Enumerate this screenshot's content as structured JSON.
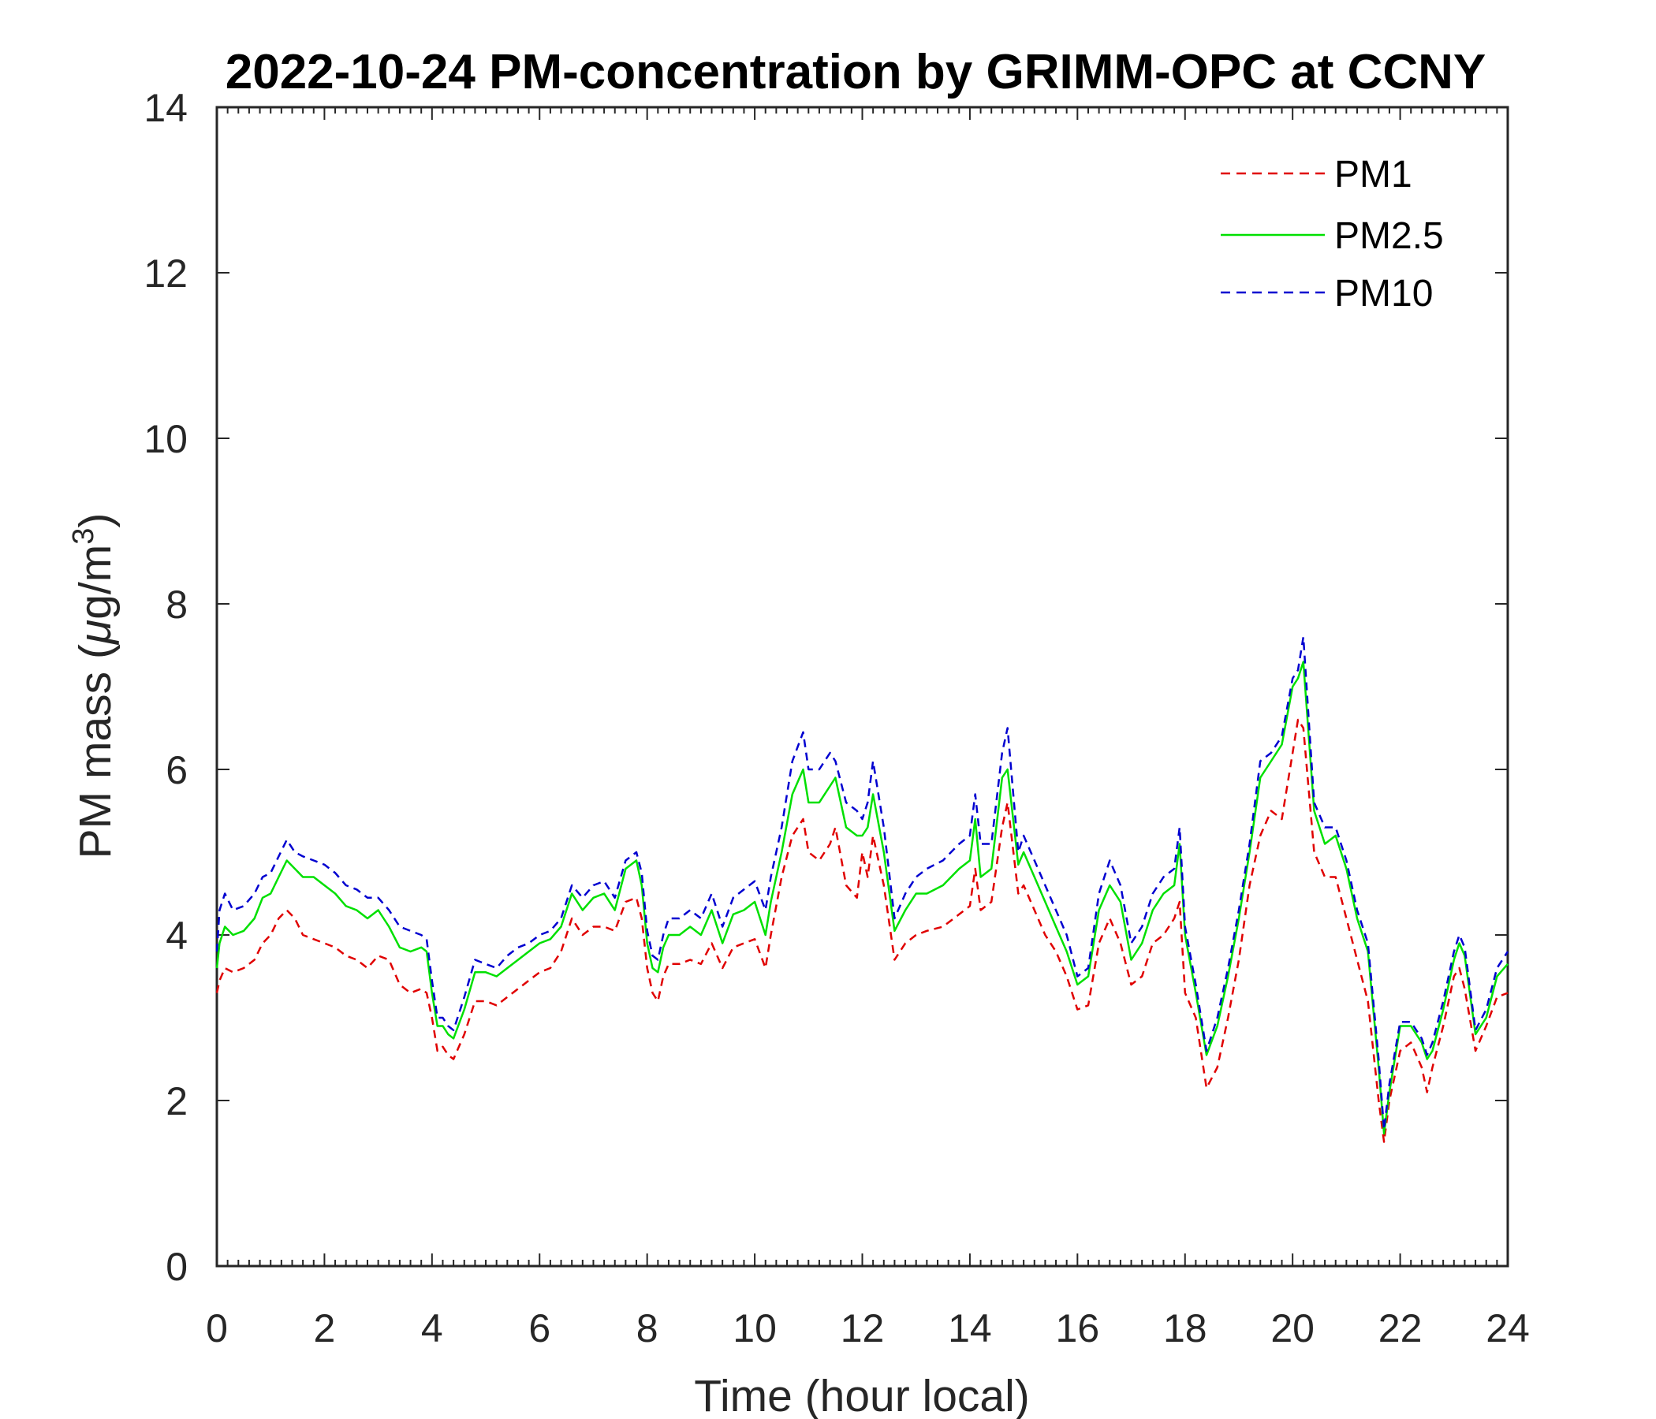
{
  "chart_data": {
    "type": "line",
    "title": "2022-10-24 PM-concentration by GRIMM-OPC at CCNY",
    "xlabel": "Time (hour local)",
    "ylabel": "PM mass (μg/m³)",
    "ylabel_parts": {
      "prefix": "PM mass (",
      "mu": "μ",
      "unit": "g/m",
      "superscript": "3",
      "suffix": ")"
    },
    "xlim": [
      0,
      24
    ],
    "ylim": [
      0,
      14
    ],
    "xticks": [
      0,
      2,
      4,
      6,
      8,
      10,
      12,
      14,
      16,
      18,
      20,
      22,
      24
    ],
    "yticks": [
      0,
      2,
      4,
      6,
      8,
      10,
      12,
      14
    ],
    "xtick_labels": [
      "0",
      "2",
      "4",
      "6",
      "8",
      "10",
      "12",
      "14",
      "16",
      "18",
      "20",
      "22",
      "24"
    ],
    "ytick_labels": [
      "0",
      "2",
      "4",
      "6",
      "8",
      "10",
      "12",
      "14"
    ],
    "grid": false,
    "legend_position": "top-right",
    "series": [
      {
        "name": "PM1",
        "color": "#e00000",
        "style": "dashed",
        "x": [
          0,
          0.05,
          0.15,
          0.3,
          0.5,
          0.7,
          0.85,
          1.0,
          1.15,
          1.3,
          1.45,
          1.6,
          1.8,
          2.0,
          2.2,
          2.4,
          2.6,
          2.8,
          3.0,
          3.2,
          3.4,
          3.6,
          3.8,
          3.9,
          4.0,
          4.1,
          4.2,
          4.3,
          4.4,
          4.6,
          4.8,
          5.0,
          5.2,
          5.4,
          5.6,
          5.8,
          6.0,
          6.2,
          6.4,
          6.6,
          6.8,
          7.0,
          7.2,
          7.4,
          7.6,
          7.8,
          7.9,
          8.0,
          8.1,
          8.2,
          8.3,
          8.4,
          8.6,
          8.8,
          9.0,
          9.2,
          9.4,
          9.6,
          9.8,
          10.0,
          10.2,
          10.3,
          10.5,
          10.7,
          10.9,
          11.0,
          11.2,
          11.4,
          11.5,
          11.7,
          11.9,
          12.0,
          12.1,
          12.2,
          12.4,
          12.6,
          12.8,
          13.0,
          13.2,
          13.5,
          13.8,
          14.0,
          14.1,
          14.2,
          14.4,
          14.6,
          14.7,
          14.9,
          15.0,
          15.2,
          15.4,
          15.6,
          15.8,
          16.0,
          16.2,
          16.4,
          16.6,
          16.8,
          17.0,
          17.2,
          17.4,
          17.6,
          17.8,
          17.9,
          18.0,
          18.2,
          18.4,
          18.6,
          18.8,
          19.0,
          19.2,
          19.4,
          19.6,
          19.8,
          20.0,
          20.1,
          20.2,
          20.4,
          20.6,
          20.8,
          21.0,
          21.2,
          21.4,
          21.6,
          21.7,
          21.8,
          22.0,
          22.2,
          22.4,
          22.5,
          22.6,
          22.8,
          23.0,
          23.1,
          23.2,
          23.4,
          23.6,
          23.8,
          24.0
        ],
        "y": [
          3.3,
          3.45,
          3.6,
          3.55,
          3.6,
          3.7,
          3.9,
          4.0,
          4.2,
          4.3,
          4.2,
          4.0,
          3.95,
          3.9,
          3.85,
          3.75,
          3.7,
          3.6,
          3.75,
          3.7,
          3.4,
          3.3,
          3.35,
          3.3,
          3.0,
          2.6,
          2.65,
          2.55,
          2.5,
          2.8,
          3.2,
          3.2,
          3.15,
          3.25,
          3.35,
          3.45,
          3.55,
          3.6,
          3.8,
          4.2,
          4.0,
          4.1,
          4.1,
          4.05,
          4.4,
          4.45,
          4.2,
          3.6,
          3.3,
          3.2,
          3.5,
          3.65,
          3.65,
          3.7,
          3.65,
          3.9,
          3.6,
          3.85,
          3.9,
          3.95,
          3.6,
          4.0,
          4.7,
          5.2,
          5.4,
          5.0,
          4.9,
          5.1,
          5.3,
          4.6,
          4.45,
          5.0,
          4.7,
          5.2,
          4.6,
          3.7,
          3.9,
          4.0,
          4.05,
          4.1,
          4.25,
          4.35,
          4.8,
          4.3,
          4.4,
          5.3,
          5.6,
          4.5,
          4.6,
          4.3,
          4.0,
          3.8,
          3.5,
          3.1,
          3.15,
          3.9,
          4.2,
          3.9,
          3.4,
          3.5,
          3.9,
          4.0,
          4.2,
          4.4,
          3.3,
          3.0,
          2.15,
          2.4,
          3.0,
          3.7,
          4.6,
          5.2,
          5.5,
          5.4,
          6.2,
          6.6,
          6.5,
          5.0,
          4.7,
          4.7,
          4.2,
          3.7,
          3.2,
          2.0,
          1.5,
          2.0,
          2.6,
          2.7,
          2.4,
          2.1,
          2.4,
          2.9,
          3.5,
          3.6,
          3.35,
          2.6,
          2.9,
          3.25,
          3.3
        ]
      },
      {
        "name": "PM2.5",
        "color": "#00e000",
        "style": "solid",
        "x": [
          0,
          0.05,
          0.15,
          0.3,
          0.5,
          0.7,
          0.85,
          1.0,
          1.15,
          1.3,
          1.45,
          1.6,
          1.8,
          2.0,
          2.2,
          2.4,
          2.6,
          2.8,
          3.0,
          3.2,
          3.4,
          3.6,
          3.8,
          3.9,
          4.0,
          4.1,
          4.2,
          4.3,
          4.4,
          4.6,
          4.8,
          5.0,
          5.2,
          5.4,
          5.6,
          5.8,
          6.0,
          6.2,
          6.4,
          6.6,
          6.8,
          7.0,
          7.2,
          7.4,
          7.6,
          7.8,
          7.9,
          8.0,
          8.1,
          8.2,
          8.3,
          8.4,
          8.6,
          8.8,
          9.0,
          9.2,
          9.4,
          9.6,
          9.8,
          10.0,
          10.2,
          10.3,
          10.5,
          10.7,
          10.9,
          11.0,
          11.2,
          11.4,
          11.5,
          11.7,
          11.9,
          12.0,
          12.1,
          12.2,
          12.4,
          12.6,
          12.8,
          13.0,
          13.2,
          13.5,
          13.8,
          14.0,
          14.1,
          14.2,
          14.4,
          14.6,
          14.7,
          14.9,
          15.0,
          15.2,
          15.4,
          15.6,
          15.8,
          16.0,
          16.2,
          16.4,
          16.6,
          16.8,
          17.0,
          17.2,
          17.4,
          17.6,
          17.8,
          17.9,
          18.0,
          18.2,
          18.4,
          18.6,
          18.8,
          19.0,
          19.2,
          19.4,
          19.6,
          19.8,
          20.0,
          20.1,
          20.2,
          20.4,
          20.6,
          20.8,
          21.0,
          21.2,
          21.4,
          21.6,
          21.7,
          21.8,
          22.0,
          22.2,
          22.4,
          22.5,
          22.6,
          22.8,
          23.0,
          23.1,
          23.2,
          23.4,
          23.6,
          23.8,
          24.0
        ],
        "y": [
          3.6,
          3.9,
          4.1,
          4.0,
          4.05,
          4.2,
          4.45,
          4.5,
          4.7,
          4.9,
          4.8,
          4.7,
          4.7,
          4.6,
          4.5,
          4.35,
          4.3,
          4.2,
          4.3,
          4.1,
          3.85,
          3.8,
          3.85,
          3.8,
          3.3,
          2.9,
          2.9,
          2.8,
          2.75,
          3.1,
          3.55,
          3.55,
          3.5,
          3.6,
          3.7,
          3.8,
          3.9,
          3.95,
          4.1,
          4.5,
          4.3,
          4.45,
          4.5,
          4.3,
          4.8,
          4.9,
          4.6,
          3.9,
          3.6,
          3.55,
          3.85,
          4.0,
          4.0,
          4.1,
          4.0,
          4.3,
          3.9,
          4.25,
          4.3,
          4.4,
          4.0,
          4.4,
          5.0,
          5.7,
          6.0,
          5.6,
          5.6,
          5.8,
          5.9,
          5.3,
          5.2,
          5.2,
          5.3,
          5.7,
          5.0,
          4.05,
          4.3,
          4.5,
          4.5,
          4.6,
          4.8,
          4.9,
          5.4,
          4.7,
          4.8,
          5.9,
          6.0,
          4.85,
          5.0,
          4.7,
          4.4,
          4.1,
          3.8,
          3.4,
          3.5,
          4.3,
          4.6,
          4.4,
          3.7,
          3.9,
          4.3,
          4.5,
          4.6,
          5.1,
          4.0,
          3.3,
          2.55,
          2.9,
          3.5,
          4.2,
          5.0,
          5.9,
          6.1,
          6.3,
          7.0,
          7.1,
          7.3,
          5.5,
          5.1,
          5.2,
          4.8,
          4.2,
          3.8,
          2.4,
          1.6,
          2.1,
          2.9,
          2.9,
          2.7,
          2.5,
          2.6,
          3.1,
          3.7,
          3.9,
          3.75,
          2.8,
          3.0,
          3.5,
          3.65
        ]
      },
      {
        "name": "PM10",
        "color": "#0000d0",
        "style": "dashed",
        "x": [
          0,
          0.05,
          0.15,
          0.3,
          0.5,
          0.7,
          0.85,
          1.0,
          1.15,
          1.3,
          1.45,
          1.6,
          1.8,
          2.0,
          2.2,
          2.4,
          2.6,
          2.8,
          3.0,
          3.2,
          3.4,
          3.6,
          3.8,
          3.9,
          4.0,
          4.1,
          4.2,
          4.3,
          4.4,
          4.6,
          4.8,
          5.0,
          5.2,
          5.4,
          5.6,
          5.8,
          6.0,
          6.2,
          6.4,
          6.6,
          6.8,
          7.0,
          7.2,
          7.4,
          7.6,
          7.8,
          7.9,
          8.0,
          8.1,
          8.2,
          8.3,
          8.4,
          8.6,
          8.8,
          9.0,
          9.2,
          9.4,
          9.6,
          9.8,
          10.0,
          10.2,
          10.3,
          10.5,
          10.7,
          10.9,
          11.0,
          11.2,
          11.4,
          11.5,
          11.7,
          11.9,
          12.0,
          12.1,
          12.2,
          12.4,
          12.6,
          12.8,
          13.0,
          13.2,
          13.5,
          13.8,
          14.0,
          14.1,
          14.2,
          14.4,
          14.6,
          14.7,
          14.9,
          15.0,
          15.2,
          15.4,
          15.6,
          15.8,
          16.0,
          16.2,
          16.4,
          16.6,
          16.8,
          17.0,
          17.2,
          17.4,
          17.6,
          17.8,
          17.9,
          18.0,
          18.2,
          18.4,
          18.6,
          18.8,
          19.0,
          19.2,
          19.4,
          19.6,
          19.8,
          20.0,
          20.1,
          20.2,
          20.4,
          20.6,
          20.8,
          21.0,
          21.2,
          21.4,
          21.6,
          21.7,
          21.8,
          22.0,
          22.2,
          22.4,
          22.5,
          22.6,
          22.8,
          23.0,
          23.1,
          23.2,
          23.4,
          23.6,
          23.8,
          24.0
        ],
        "y": [
          3.8,
          4.3,
          4.5,
          4.3,
          4.35,
          4.5,
          4.7,
          4.75,
          4.95,
          5.15,
          5.0,
          4.95,
          4.9,
          4.85,
          4.75,
          4.6,
          4.55,
          4.45,
          4.45,
          4.3,
          4.1,
          4.05,
          4.0,
          3.95,
          3.45,
          3.0,
          3.0,
          2.9,
          2.85,
          3.25,
          3.7,
          3.65,
          3.6,
          3.75,
          3.85,
          3.9,
          4.0,
          4.05,
          4.2,
          4.6,
          4.45,
          4.6,
          4.65,
          4.45,
          4.9,
          5.0,
          4.75,
          4.05,
          3.75,
          3.7,
          4.0,
          4.2,
          4.2,
          4.3,
          4.2,
          4.5,
          4.1,
          4.45,
          4.55,
          4.65,
          4.3,
          4.7,
          5.3,
          6.1,
          6.45,
          6.0,
          6.0,
          6.2,
          6.1,
          5.6,
          5.5,
          5.4,
          5.6,
          6.1,
          5.3,
          4.2,
          4.5,
          4.7,
          4.8,
          4.9,
          5.1,
          5.2,
          5.7,
          5.1,
          5.1,
          6.2,
          6.5,
          5.0,
          5.2,
          4.9,
          4.6,
          4.3,
          4.0,
          3.5,
          3.6,
          4.5,
          4.9,
          4.6,
          3.9,
          4.1,
          4.5,
          4.7,
          4.8,
          5.3,
          4.1,
          3.4,
          2.6,
          3.0,
          3.6,
          4.3,
          5.1,
          6.1,
          6.2,
          6.4,
          7.1,
          7.2,
          7.6,
          5.6,
          5.3,
          5.3,
          4.9,
          4.3,
          3.9,
          2.5,
          1.65,
          2.2,
          2.95,
          2.95,
          2.75,
          2.55,
          2.7,
          3.2,
          3.8,
          4.0,
          3.85,
          2.85,
          3.1,
          3.6,
          3.8
        ]
      }
    ]
  }
}
